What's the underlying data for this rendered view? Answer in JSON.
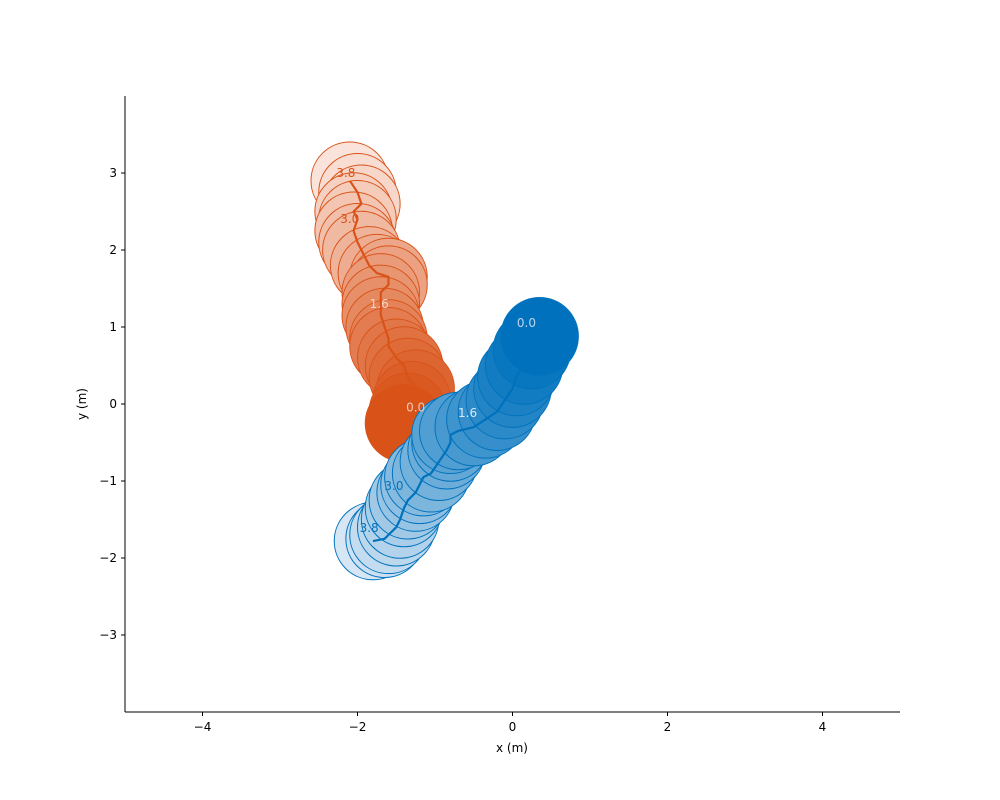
{
  "chart_data": {
    "type": "scatter",
    "xlabel": "x (m)",
    "ylabel": "y (m)",
    "xlim": [
      -5,
      5
    ],
    "ylim": [
      -4,
      4
    ],
    "x_ticks": [
      -4,
      -2,
      0,
      2,
      4
    ],
    "y_ticks": [
      -3,
      -2,
      -1,
      0,
      1,
      2,
      3
    ],
    "x_tick_labels": [
      "−4",
      "−2",
      "0",
      "2",
      "4"
    ],
    "y_tick_labels": [
      "−3",
      "−2",
      "−1",
      "0",
      "1",
      "2",
      "3"
    ],
    "grid": false,
    "legend": "none",
    "agent_radius": 0.5,
    "series": [
      {
        "color": "#d95319",
        "light_color": "#fae3da",
        "points": [
          [
            -1.4,
            -0.25
          ],
          [
            -1.35,
            -0.1
          ],
          [
            -1.3,
            0.05
          ],
          [
            -1.25,
            0.2
          ],
          [
            -1.35,
            0.35
          ],
          [
            -1.4,
            0.5
          ],
          [
            -1.5,
            0.6
          ],
          [
            -1.6,
            0.75
          ],
          [
            -1.6,
            0.85
          ],
          [
            -1.65,
            1.0
          ],
          [
            -1.7,
            1.15
          ],
          [
            -1.7,
            1.3
          ],
          [
            -1.7,
            1.45
          ],
          [
            -1.6,
            1.55
          ],
          [
            -1.6,
            1.65
          ],
          [
            -1.75,
            1.7
          ],
          [
            -1.85,
            1.8
          ],
          [
            -1.95,
            2.0
          ],
          [
            -2.0,
            2.1
          ],
          [
            -2.05,
            2.25
          ],
          [
            -2.0,
            2.4
          ],
          [
            -2.05,
            2.5
          ],
          [
            -1.95,
            2.6
          ],
          [
            -2.0,
            2.75
          ],
          [
            -2.1,
            2.9
          ]
        ],
        "labels": [
          {
            "text": "0.0",
            "x": -1.25,
            "y": -0.1,
            "tone": "#f0c8b4"
          },
          {
            "text": "1.6",
            "x": -1.72,
            "y": 1.25,
            "tone": "#f6d3c3"
          },
          {
            "text": "3.0",
            "x": -2.1,
            "y": 2.35,
            "tone": "#d95319"
          },
          {
            "text": "3.8",
            "x": -2.15,
            "y": 2.95,
            "tone": "#d95319"
          }
        ]
      },
      {
        "color": "#0072bd",
        "light_color": "#d6e6f4",
        "points": [
          [
            0.35,
            0.88
          ],
          [
            0.25,
            0.7
          ],
          [
            0.15,
            0.5
          ],
          [
            0.05,
            0.35
          ],
          [
            0.0,
            0.2
          ],
          [
            -0.1,
            0.05
          ],
          [
            -0.2,
            -0.1
          ],
          [
            -0.35,
            -0.2
          ],
          [
            -0.5,
            -0.3
          ],
          [
            -0.7,
            -0.35
          ],
          [
            -0.8,
            -0.4
          ],
          [
            -0.8,
            -0.5
          ],
          [
            -0.85,
            -0.6
          ],
          [
            -0.95,
            -0.75
          ],
          [
            -1.05,
            -0.9
          ],
          [
            -1.15,
            -0.95
          ],
          [
            -1.2,
            -1.05
          ],
          [
            -1.25,
            -1.15
          ],
          [
            -1.35,
            -1.25
          ],
          [
            -1.4,
            -1.35
          ],
          [
            -1.45,
            -1.5
          ],
          [
            -1.5,
            -1.6
          ],
          [
            -1.6,
            -1.7
          ],
          [
            -1.65,
            -1.75
          ],
          [
            -1.8,
            -1.78
          ]
        ],
        "labels": [
          {
            "text": "0.0",
            "x": 0.18,
            "y": 1.0,
            "tone": "#bcd6ee"
          },
          {
            "text": "1.6",
            "x": -0.58,
            "y": -0.17,
            "tone": "#d9e8f5"
          },
          {
            "text": "3.0",
            "x": -1.53,
            "y": -1.12,
            "tone": "#0072bd"
          },
          {
            "text": "3.8",
            "x": -1.85,
            "y": -1.66,
            "tone": "#0072bd"
          }
        ]
      }
    ]
  }
}
